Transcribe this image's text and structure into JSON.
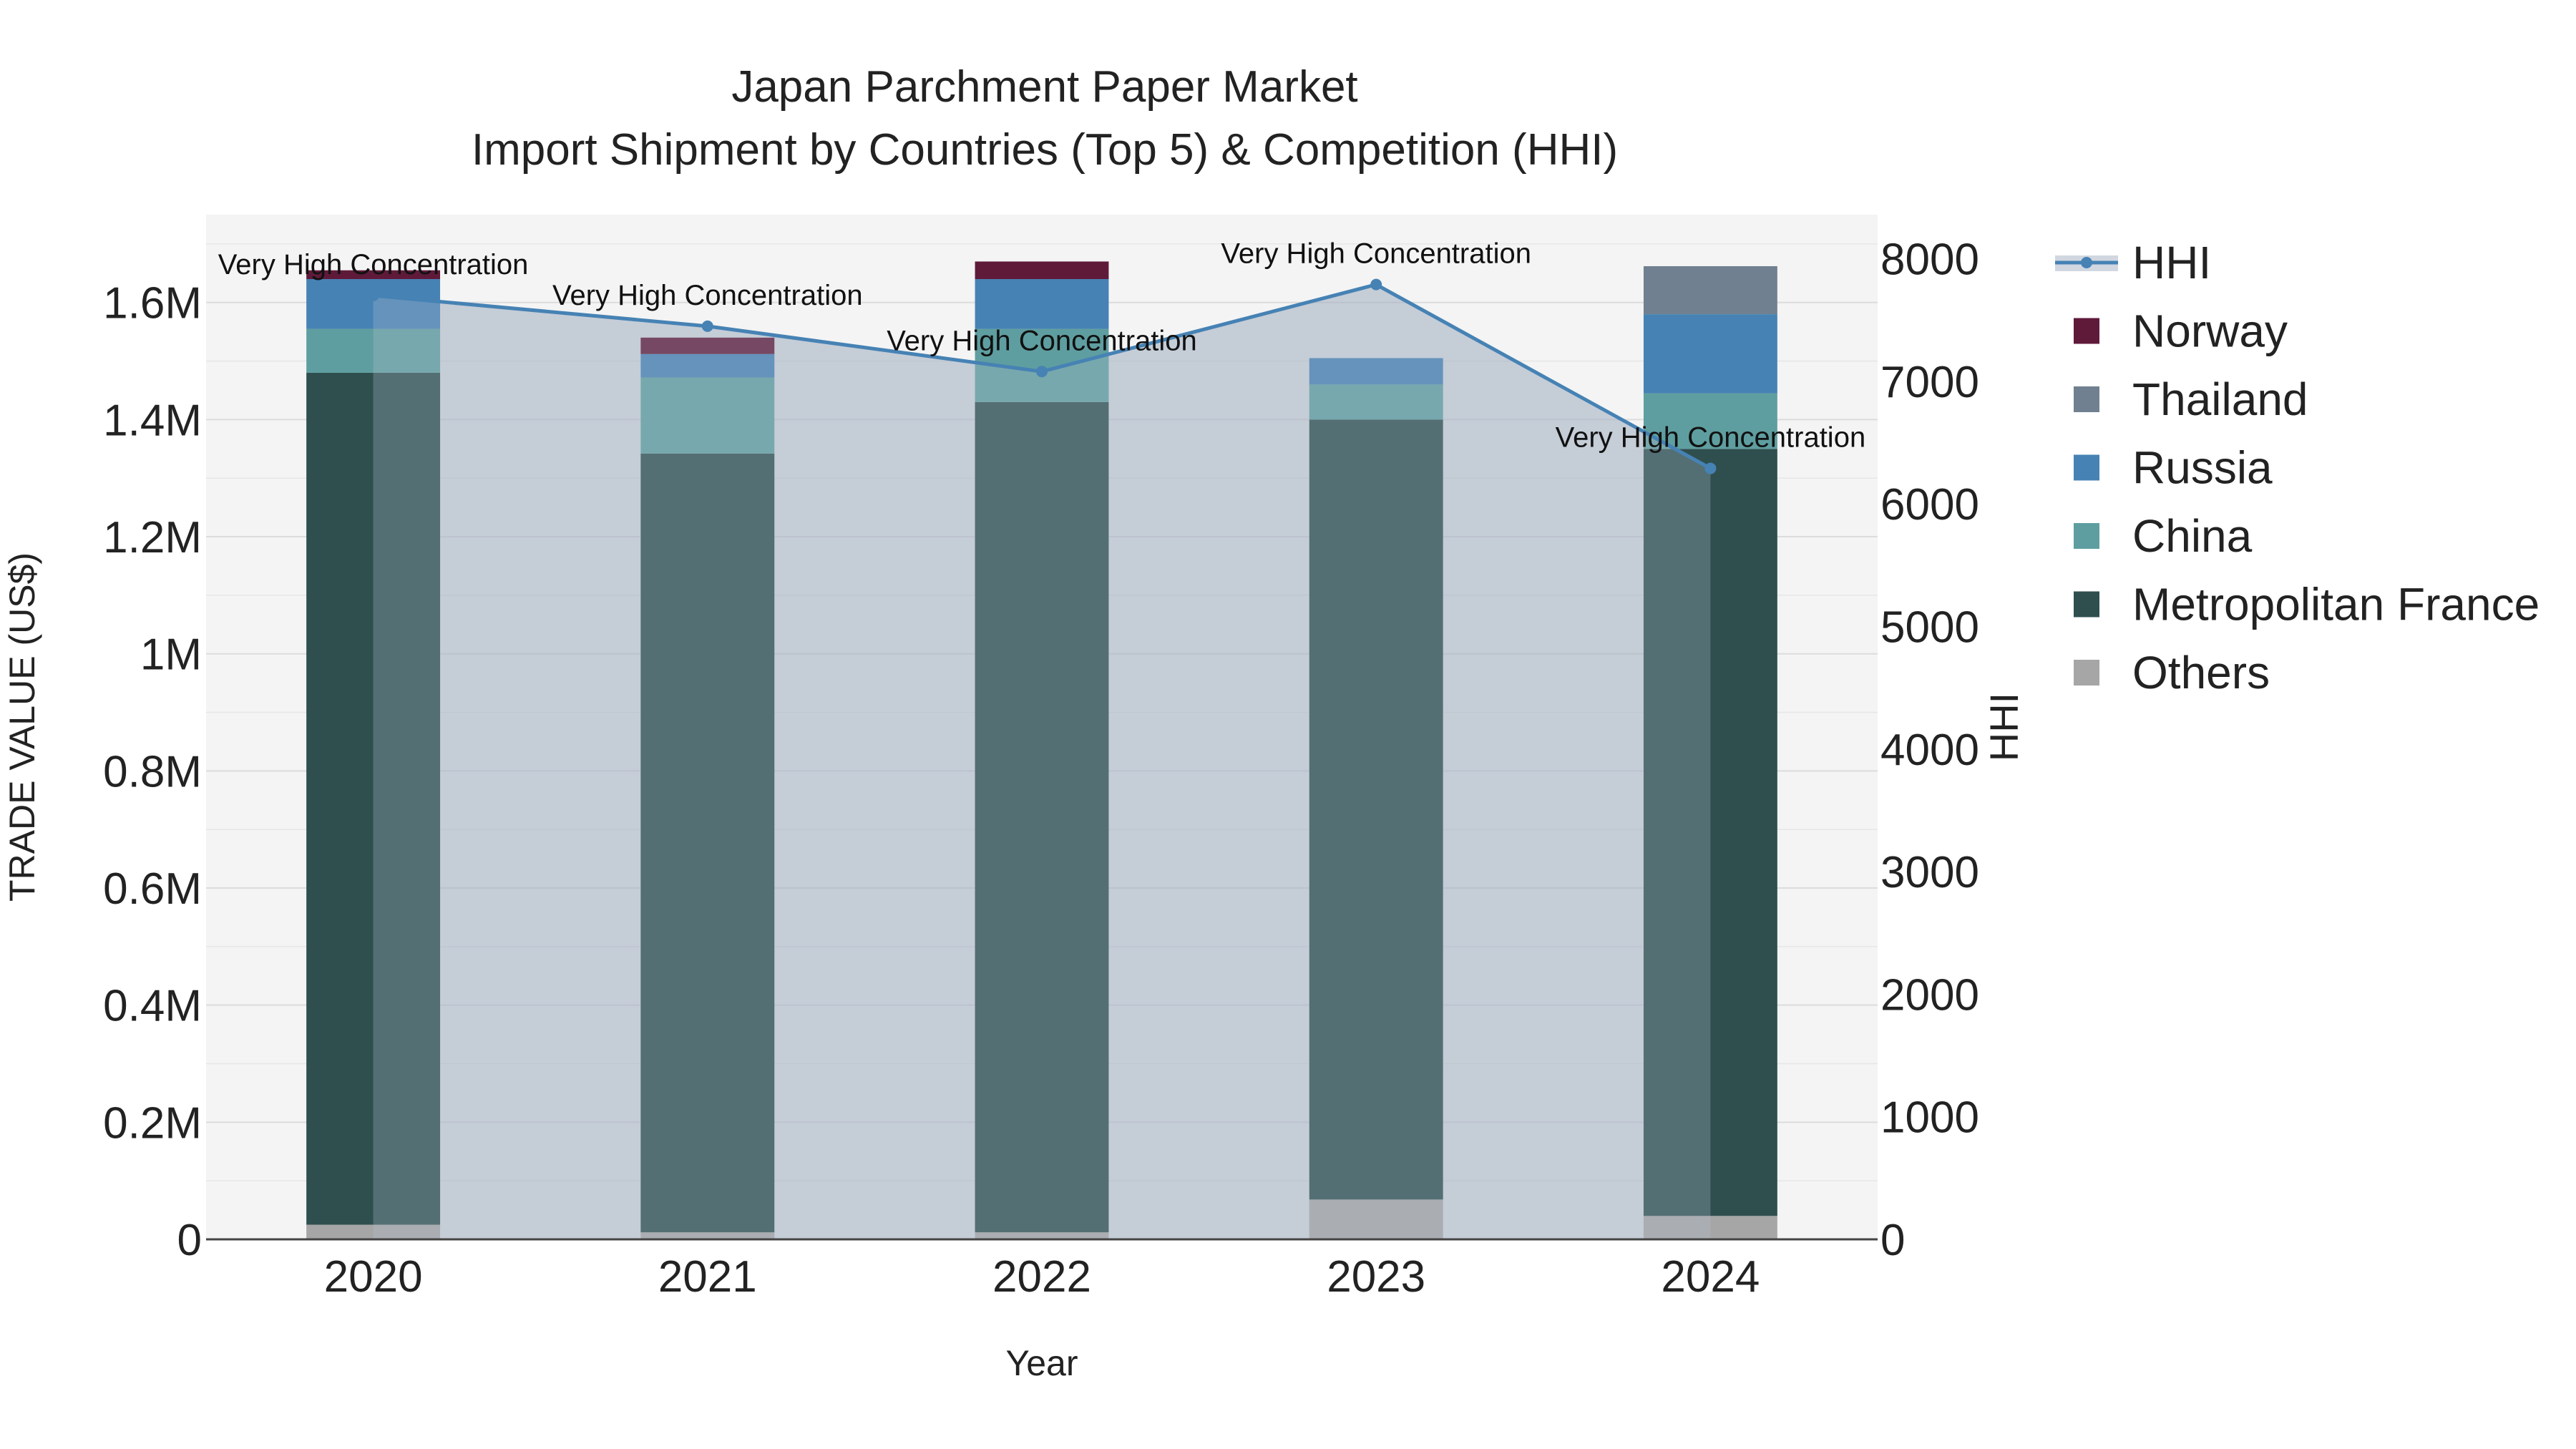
{
  "chart_data": {
    "type": "bar",
    "title_line1": "Japan Parchment Paper Market",
    "title_line2": "Import Shipment by Countries (Top 5) & Competition (HHI)",
    "xlabel": "Year",
    "ylabel": "TRADE VALUE (US$)",
    "y2label": "HHI",
    "categories": [
      "2020",
      "2021",
      "2022",
      "2023",
      "2024"
    ],
    "ylim": [
      0,
      1750000
    ],
    "y_ticks": [
      0,
      200000,
      400000,
      600000,
      800000,
      1000000,
      1200000,
      1400000,
      1600000
    ],
    "y_tick_labels": [
      "0",
      "0.2M",
      "0.4M",
      "0.6M",
      "0.8M",
      "1M",
      "1.2M",
      "1.4M",
      "1.6M"
    ],
    "y2lim": [
      0,
      8360
    ],
    "y2_ticks": [
      0,
      1000,
      2000,
      3000,
      4000,
      5000,
      6000,
      7000,
      8000
    ],
    "y2_tick_labels": [
      "0",
      "1000",
      "2000",
      "3000",
      "4000",
      "5000",
      "6000",
      "7000",
      "8000"
    ],
    "series": [
      {
        "name": "Others",
        "color": "#a6a6a6",
        "values": [
          25000,
          12000,
          12000,
          68000,
          40000
        ]
      },
      {
        "name": "Metropolitan France",
        "color": "#2f4f4f",
        "values": [
          1455000,
          1330000,
          1418000,
          1332000,
          1310000
        ]
      },
      {
        "name": "China",
        "color": "#5f9ea0",
        "values": [
          75000,
          130000,
          125000,
          60000,
          95000
        ]
      },
      {
        "name": "Russia",
        "color": "#4682b4",
        "values": [
          85000,
          40000,
          85000,
          45000,
          135000
        ]
      },
      {
        "name": "Thailand",
        "color": "#708090",
        "values": [
          0,
          0,
          0,
          0,
          82000
        ]
      },
      {
        "name": "Norway",
        "color": "#5f1a3a",
        "values": [
          15000,
          28000,
          30000,
          0,
          0
        ]
      }
    ],
    "hhi": {
      "name": "HHI",
      "color": "#4682b4",
      "values": [
        7700,
        7450,
        7080,
        7790,
        6290
      ],
      "labels": [
        "Very High Concentration",
        "Very High Concentration",
        "Very High Concentration",
        "Very High Concentration",
        "Very High Concentration"
      ]
    },
    "legend": [
      "HHI",
      "Norway",
      "Thailand",
      "Russia",
      "China",
      "Metropolitan France",
      "Others"
    ],
    "legend_placement": "right"
  }
}
